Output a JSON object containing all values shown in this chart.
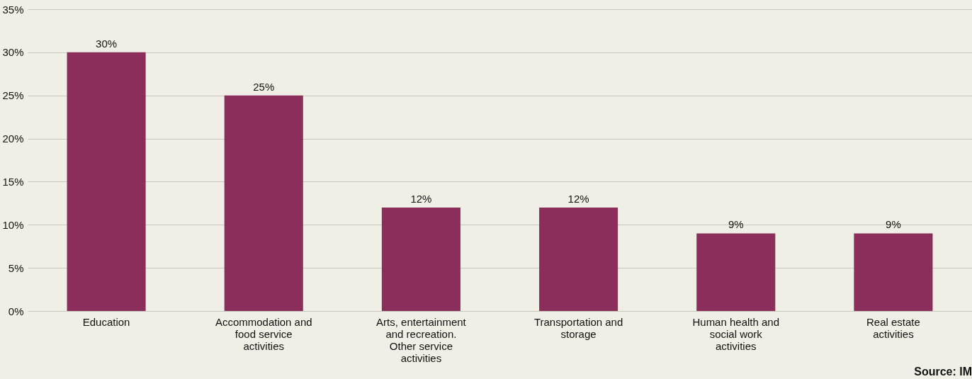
{
  "chart_data": {
    "type": "bar",
    "categories": [
      "Education",
      "Accommodation and food service activities",
      "Arts, entertainment and recreation. Other service activities",
      "Transportation and storage",
      "Human health and social work activities",
      "Real estate activities"
    ],
    "values": [
      30,
      25,
      12,
      12,
      9,
      9
    ],
    "value_labels": [
      "30%",
      "25%",
      "12%",
      "12%",
      "9%",
      "9%"
    ],
    "color": "#8b2e5c",
    "ylim": [
      0,
      35
    ],
    "yticks": [
      {
        "value": 0,
        "label": "0%"
      },
      {
        "value": 5,
        "label": "5%"
      },
      {
        "value": 10,
        "label": "10%"
      },
      {
        "value": 15,
        "label": "15%"
      },
      {
        "value": 20,
        "label": "20%"
      },
      {
        "value": 25,
        "label": "25%"
      },
      {
        "value": 30,
        "label": "30%"
      },
      {
        "value": 35,
        "label": "35%"
      }
    ],
    "grid": "y",
    "annotations": [
      "Source: IM"
    ]
  }
}
